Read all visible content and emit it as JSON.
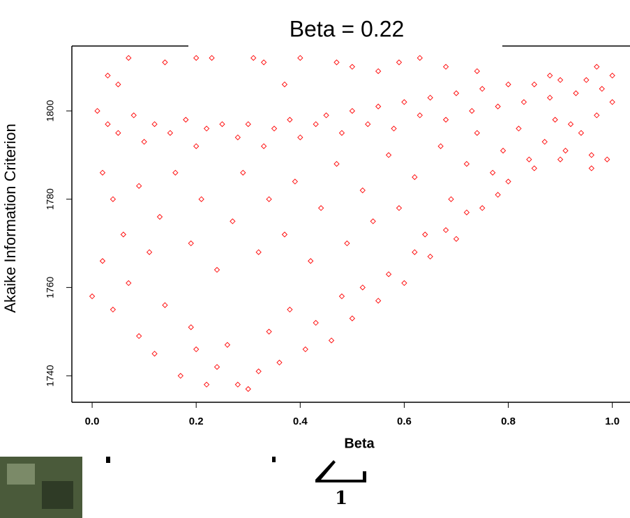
{
  "chart_data": {
    "type": "scatter",
    "title": "Beta = 0.22",
    "x_label": "Beta",
    "y_label": "Akaike Information Criterion",
    "color": "#ff0000",
    "marker": "diamond",
    "xlim": [
      -0.039,
      1.034
    ],
    "ylim": [
      1734,
      1814.7
    ],
    "xticks": [
      {
        "value": 0,
        "label": "0.0"
      },
      {
        "value": 0.2,
        "label": "0.2"
      },
      {
        "value": 0.4,
        "label": "0.4"
      },
      {
        "value": 0.6,
        "label": "0.6"
      },
      {
        "value": 0.8,
        "label": "0.8"
      },
      {
        "value": 1,
        "label": "1.0"
      }
    ],
    "yticks": [
      1740,
      1760,
      1780,
      1800
    ],
    "x": [
      0.01,
      0.03,
      0.05,
      0.08,
      0.1,
      0.12,
      0.15,
      0.18,
      0.2,
      0.22,
      0.25,
      0.28,
      0.3,
      0.33,
      0.35,
      0.38,
      0.4,
      0.43,
      0.45,
      0.48,
      0.5,
      0.53,
      0.55,
      0.58,
      0.6,
      0.63,
      0.65,
      0.68,
      0.7,
      0.73,
      0.75,
      0.78,
      0.8,
      0.83,
      0.85,
      0.88,
      0.9,
      0.93,
      0.95,
      0.98,
      1.0,
      1.0,
      0.97,
      0.92,
      0.02,
      0.04,
      0.06,
      0.09,
      0.11,
      0.13,
      0.16,
      0.19,
      0.21,
      0.24,
      0.27,
      0.29,
      0.32,
      0.34,
      0.37,
      0.39,
      0.42,
      0.44,
      0.47,
      0.49,
      0.52,
      0.54,
      0.57,
      0.59,
      0.62,
      0.64,
      0.67,
      0.69,
      0.72,
      0.74,
      0.77,
      0.79,
      0.82,
      0.84,
      0.87,
      0.89,
      0.91,
      0.94,
      0.96,
      0.99,
      0.0,
      0.02,
      0.04,
      0.07,
      0.09,
      0.12,
      0.14,
      0.17,
      0.19,
      0.2,
      0.22,
      0.24,
      0.26,
      0.28,
      0.3,
      0.32,
      0.34,
      0.36,
      0.38,
      0.41,
      0.43,
      0.46,
      0.48,
      0.5,
      0.52,
      0.55,
      0.57,
      0.6,
      0.62,
      0.65,
      0.68,
      0.7,
      0.72,
      0.75,
      0.78,
      0.8,
      0.85,
      0.9,
      0.96,
      0.03,
      0.07,
      0.05,
      0.14,
      0.2,
      0.23,
      0.31,
      0.33,
      0.37,
      0.4,
      0.47,
      0.5,
      0.55,
      0.59,
      0.63,
      0.68,
      0.74,
      0.88,
      0.97
    ],
    "values": [
      1800,
      1797,
      1795,
      1799,
      1793,
      1797,
      1795,
      1798,
      1792,
      1796,
      1797,
      1794,
      1797,
      1792,
      1796,
      1798,
      1794,
      1797,
      1799,
      1795,
      1800,
      1797,
      1801,
      1796,
      1802,
      1799,
      1803,
      1798,
      1804,
      1800,
      1805,
      1801,
      1806,
      1802,
      1806,
      1803,
      1807,
      1804,
      1807,
      1805,
      1808,
      1802,
      1799,
      1797,
      1786,
      1780,
      1772,
      1783,
      1768,
      1776,
      1786,
      1770,
      1780,
      1764,
      1775,
      1786,
      1768,
      1780,
      1772,
      1784,
      1766,
      1778,
      1788,
      1770,
      1782,
      1775,
      1790,
      1778,
      1785,
      1772,
      1792,
      1780,
      1788,
      1795,
      1786,
      1791,
      1796,
      1789,
      1793,
      1798,
      1791,
      1795,
      1790,
      1789,
      1758,
      1766,
      1755,
      1761,
      1749,
      1745,
      1756,
      1740,
      1751,
      1746,
      1738,
      1742,
      1747,
      1738,
      1737,
      1741,
      1750,
      1743,
      1755,
      1746,
      1752,
      1748,
      1758,
      1753,
      1760,
      1757,
      1763,
      1761,
      1768,
      1767,
      1773,
      1771,
      1777,
      1778,
      1781,
      1784,
      1787,
      1789,
      1787,
      1808,
      1812,
      1806,
      1811,
      1812,
      1812,
      1812,
      1811,
      1806,
      1812,
      1811,
      1810,
      1809,
      1811,
      1812,
      1810,
      1809,
      1808,
      1810
    ]
  },
  "fragment": {
    "label": "1"
  }
}
